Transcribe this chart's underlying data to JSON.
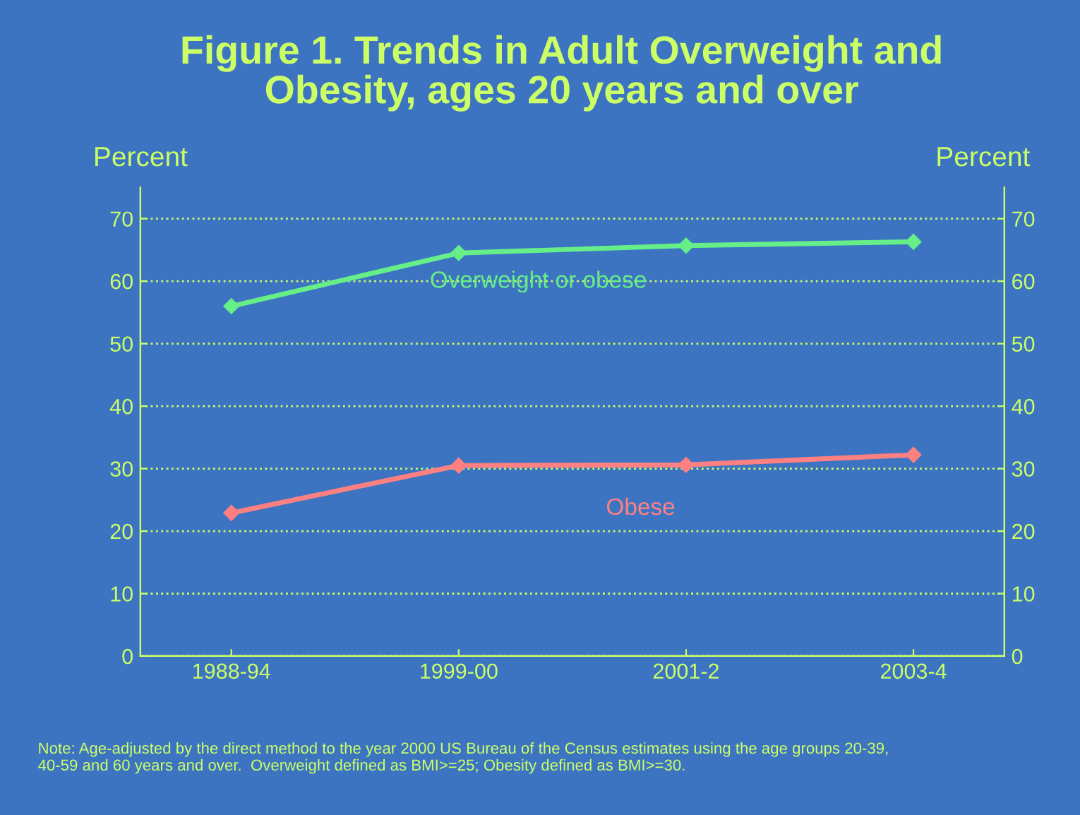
{
  "chart_data": {
    "type": "line",
    "title": "Figure 1. Trends in Adult Overweight and\nObesity, ages 20 years and over",
    "ylabel": "Percent",
    "y2label": "Percent",
    "categories": [
      "1988-94",
      "1999-00",
      "2001-2",
      "2003-4"
    ],
    "ylim": [
      0,
      75
    ],
    "yticks": [
      0,
      10,
      20,
      30,
      40,
      50,
      60,
      70
    ],
    "y2lim": [
      0,
      75
    ],
    "y2ticks": [
      0,
      10,
      20,
      30,
      40,
      50,
      60,
      70
    ],
    "series": [
      {
        "name": "Overweight or obese",
        "color": "#66ee88",
        "values": [
          56.0,
          64.5,
          65.7,
          66.3
        ]
      },
      {
        "name": "Obese",
        "color": "#ff8080",
        "values": [
          22.9,
          30.5,
          30.6,
          32.2
        ]
      }
    ],
    "marker": "diamond",
    "line_style": "solid",
    "grid": "y",
    "legend": false,
    "annotations": [
      "Note: Age-adjusted by the direct method to the year 2000 US Bureau of the Census estimates using the age groups 20-39,\n40-59 and 60 years and over.  Overweight defined as BMI>=25; Obesity defined as BMI>=30."
    ]
  }
}
